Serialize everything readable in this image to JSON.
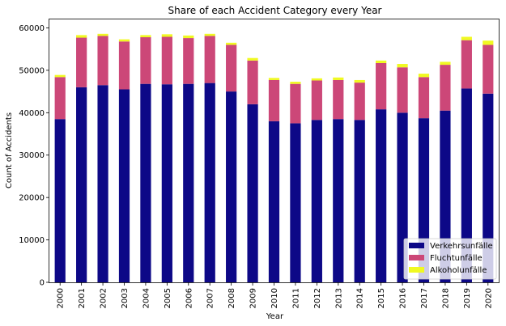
{
  "chart_data": {
    "type": "bar",
    "stacked": true,
    "title": "Share of each Accident Category every Year",
    "xlabel": "Year",
    "ylabel": "Count of Accidents",
    "ylim": [
      0,
      62000
    ],
    "yticks": [
      0,
      10000,
      20000,
      30000,
      40000,
      50000,
      60000
    ],
    "grid": false,
    "legend_position": "bottom-right",
    "categories": [
      "2000",
      "2001",
      "2002",
      "2003",
      "2004",
      "2005",
      "2006",
      "2007",
      "2008",
      "2009",
      "2010",
      "2011",
      "2012",
      "2013",
      "2014",
      "2015",
      "2016",
      "2017",
      "2018",
      "2019",
      "2020"
    ],
    "series": [
      {
        "name": "Verkehrsunfälle",
        "color": "#0d0887",
        "values": [
          38500,
          46000,
          46500,
          45500,
          46800,
          46700,
          46800,
          47000,
          45000,
          42000,
          38000,
          37500,
          38300,
          38500,
          38300,
          40800,
          40000,
          38700,
          40500,
          45700,
          44500
        ]
      },
      {
        "name": "Fluchtunfälle",
        "color": "#cc4778",
        "values": [
          9900,
          11700,
          11600,
          11300,
          11000,
          11200,
          10800,
          11100,
          11000,
          10300,
          9700,
          9300,
          9300,
          9200,
          8800,
          10900,
          10700,
          9700,
          10800,
          11400,
          11500
        ]
      },
      {
        "name": "Alkoholunfälle",
        "color": "#f0f921",
        "values": [
          500,
          600,
          500,
          500,
          500,
          600,
          600,
          500,
          500,
          600,
          500,
          500,
          500,
          600,
          600,
          600,
          800,
          800,
          700,
          800,
          1000
        ]
      }
    ]
  }
}
